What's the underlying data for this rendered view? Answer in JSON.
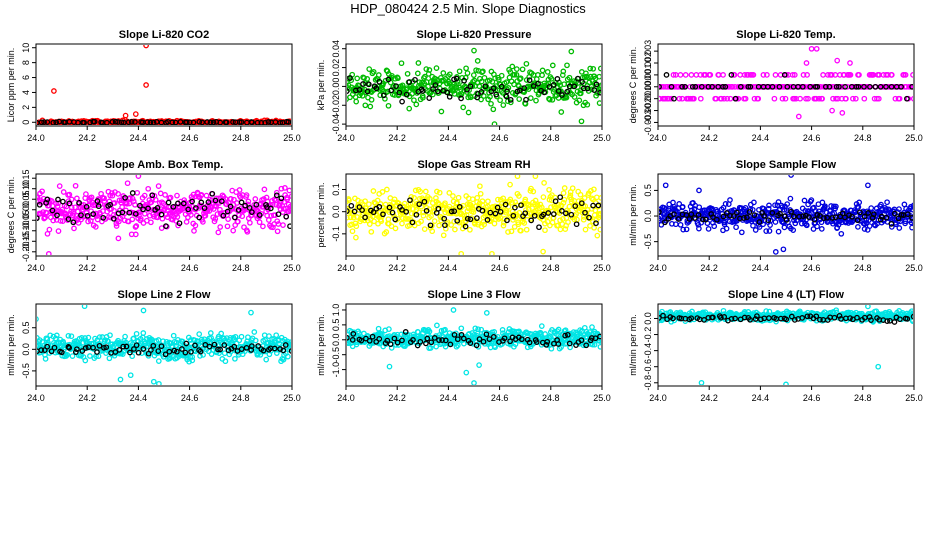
{
  "page": {
    "title": "HDP_080424  2.5 Min. Slope Diagnostics"
  },
  "chart_data": [
    {
      "type": "scatter",
      "title": "Slope Li-820 CO2",
      "xlabel": "",
      "ylabel": "Licor ppm per min.",
      "color": "#ff0000",
      "xlim": [
        24.0,
        25.0
      ],
      "ylim": [
        -0.5,
        10.5
      ],
      "x_ticks": [
        "24.0",
        "24.2",
        "24.4",
        "24.6",
        "24.8",
        "25.0"
      ],
      "x_tick_values": [
        24.0,
        24.2,
        24.4,
        24.6,
        24.8,
        25.0
      ],
      "y_ticks": [
        "0",
        "2",
        "4",
        "6",
        "8",
        "10"
      ],
      "y_tick_values": [
        0,
        2,
        4,
        6,
        8,
        10
      ],
      "series": [
        {
          "name": "all",
          "color": "#ff0000",
          "generator": {
            "center": 0.0,
            "spread": 0.25,
            "n": 330,
            "seed": 11
          },
          "outliers": [
            [
              24.07,
              4.2
            ],
            [
              24.43,
              10.3
            ],
            [
              24.43,
              5.0
            ],
            [
              24.39,
              1.1
            ],
            [
              24.38,
              -0.7
            ],
            [
              24.41,
              -0.4
            ],
            [
              24.35,
              0.9
            ]
          ]
        },
        {
          "name": "subset",
          "color": "#000000",
          "generator": {
            "center": 0.0,
            "spread": 0.1,
            "n": 70,
            "seed": 12
          }
        }
      ]
    },
    {
      "type": "scatter",
      "title": "Slope Li-820 Pressure",
      "xlabel": "",
      "ylabel": "kPa per min.",
      "color": "#00bb00",
      "xlim": [
        24.0,
        25.0
      ],
      "ylim": [
        -0.042,
        0.045
      ],
      "x_ticks": [
        "24.0",
        "24.2",
        "24.4",
        "24.6",
        "24.8",
        "25.0"
      ],
      "x_tick_values": [
        24.0,
        24.2,
        24.4,
        24.6,
        24.8,
        25.0
      ],
      "y_ticks": [
        "-0.04",
        "-0.02",
        "0.00",
        "0.02",
        "0.04"
      ],
      "y_tick_values": [
        -0.04,
        -0.02,
        0.0,
        0.02,
        0.04
      ],
      "series": [
        {
          "name": "all",
          "color": "#00bb00",
          "generator": {
            "center": 0.0,
            "spread": 0.022,
            "n": 420,
            "seed": 21
          },
          "outliers": [
            [
              24.58,
              -0.04
            ],
            [
              24.92,
              -0.037
            ],
            [
              24.5,
              0.038
            ],
            [
              24.88,
              0.037
            ]
          ]
        },
        {
          "name": "subset",
          "color": "#000000",
          "generator": {
            "center": -0.002,
            "spread": 0.012,
            "n": 70,
            "seed": 22
          }
        }
      ]
    },
    {
      "type": "scatter",
      "title": "Slope Li-820 Temp.",
      "xlabel": "",
      "ylabel": "degrees C per min.",
      "color": "#ff00ff",
      "xlim": [
        24.0,
        25.0
      ],
      "ylim": [
        -0.0033,
        0.0036
      ],
      "x_ticks": [
        "24.0",
        "24.2",
        "24.4",
        "24.6",
        "24.8",
        "25.0"
      ],
      "x_tick_values": [
        24.0,
        24.2,
        24.4,
        24.6,
        24.8,
        25.0
      ],
      "y_ticks": [
        "-0.003",
        "-0.002",
        "-0.001",
        "0.000",
        "0.001",
        "0.002",
        "0.003"
      ],
      "y_tick_values": [
        -0.003,
        -0.002,
        -0.001,
        0.0,
        0.001,
        0.002,
        0.003
      ],
      "series": [
        {
          "name": "all",
          "color": "#ff00ff",
          "generator": {
            "levels": [
              0.0,
              0.001,
              -0.001
            ],
            "weights": [
              0.55,
              0.22,
              0.23
            ],
            "n": 300,
            "seed": 31
          },
          "outliers": [
            [
              24.6,
              0.0032
            ],
            [
              24.62,
              0.0032
            ],
            [
              24.55,
              -0.0025
            ],
            [
              24.7,
              0.0022
            ],
            [
              24.72,
              -0.0022
            ],
            [
              24.75,
              0.002
            ],
            [
              24.58,
              0.002
            ],
            [
              24.68,
              -0.002
            ]
          ]
        },
        {
          "name": "subset",
          "color": "#000000",
          "generator": {
            "levels": [
              0.0,
              0.001,
              -0.001
            ],
            "weights": [
              0.8,
              0.1,
              0.1
            ],
            "n": 50,
            "seed": 32
          }
        }
      ]
    },
    {
      "type": "scatter",
      "title": "Slope Amb. Box Temp.",
      "xlabel": "",
      "ylabel": "degrees C per min.",
      "color": "#ff00ff",
      "xlim": [
        24.0,
        25.0
      ],
      "ylim": [
        -0.22,
        0.17
      ],
      "x_ticks": [
        "24.0",
        "24.2",
        "24.4",
        "24.6",
        "24.8",
        "25.0"
      ],
      "x_tick_values": [
        24.0,
        24.2,
        24.4,
        24.6,
        24.8,
        25.0
      ],
      "y_ticks": [
        "-0.20",
        "-0.15",
        "-0.10",
        "-0.05",
        "0.00",
        "0.05",
        "0.10",
        "0.15"
      ],
      "y_tick_values": [
        -0.2,
        -0.15,
        -0.1,
        -0.05,
        0.0,
        0.05,
        0.1,
        0.15
      ],
      "series": [
        {
          "name": "all",
          "color": "#ff00ff",
          "generator": {
            "center": 0.0,
            "spread": 0.1,
            "n": 480,
            "seed": 41
          },
          "outliers": [
            [
              24.05,
              -0.21
            ],
            [
              24.4,
              0.16
            ]
          ]
        },
        {
          "name": "subset",
          "color": "#000000",
          "generator": {
            "center": 0.0,
            "spread": 0.07,
            "n": 70,
            "seed": 42
          }
        }
      ]
    },
    {
      "type": "scatter",
      "title": "Slope Gas Stream RH",
      "xlabel": "",
      "ylabel": "percent per min.",
      "color": "#ffff00",
      "xlim": [
        24.0,
        25.0
      ],
      "ylim": [
        -0.2,
        0.17
      ],
      "x_ticks": [
        "24.0",
        "24.2",
        "24.4",
        "24.6",
        "24.8",
        "25.0"
      ],
      "x_tick_values": [
        24.0,
        24.2,
        24.4,
        24.6,
        24.8,
        25.0
      ],
      "y_ticks": [
        "-0.1",
        "0.0",
        "0.1"
      ],
      "y_tick_values": [
        -0.1,
        0.0,
        0.1
      ],
      "series": [
        {
          "name": "all",
          "color": "#ffff00",
          "generator": {
            "center": 0.0,
            "spread": 0.1,
            "n": 480,
            "seed": 51
          },
          "outliers": [
            [
              24.45,
              -0.19
            ],
            [
              24.57,
              -0.19
            ],
            [
              24.77,
              -0.18
            ],
            [
              24.67,
              0.16
            ],
            [
              24.74,
              0.16
            ]
          ]
        },
        {
          "name": "subset",
          "color": "#000000",
          "generator": {
            "center": 0.0,
            "spread": 0.06,
            "n": 70,
            "seed": 52
          }
        }
      ]
    },
    {
      "type": "scatter",
      "title": "Slope Sample Flow",
      "xlabel": "",
      "ylabel": "ml/min per min.",
      "color": "#0000dd",
      "xlim": [
        24.0,
        25.0
      ],
      "ylim": [
        -0.78,
        0.82
      ],
      "x_ticks": [
        "24.0",
        "24.2",
        "24.4",
        "24.6",
        "24.8",
        "25.0"
      ],
      "x_tick_values": [
        24.0,
        24.2,
        24.4,
        24.6,
        24.8,
        25.0
      ],
      "y_ticks": [
        "-0.5",
        "0.0",
        "0.5"
      ],
      "y_tick_values": [
        -0.5,
        0.0,
        0.5
      ],
      "series": [
        {
          "name": "all",
          "color": "#0000dd",
          "generator": {
            "center": 0.0,
            "spread": 0.28,
            "n": 480,
            "seed": 61
          },
          "outliers": [
            [
              24.52,
              0.8
            ],
            [
              24.49,
              -0.65
            ],
            [
              24.46,
              -0.7
            ],
            [
              24.82,
              0.6
            ],
            [
              24.16,
              0.5
            ],
            [
              24.03,
              0.6
            ]
          ]
        },
        {
          "name": "subset",
          "color": "#000000",
          "generator": {
            "center": 0.0,
            "spread": 0.12,
            "n": 70,
            "seed": 62
          }
        }
      ]
    },
    {
      "type": "scatter",
      "title": "Slope Line 2 Flow",
      "xlabel": "",
      "ylabel": "ml/min per min.",
      "color": "#00e5e5",
      "xlim": [
        24.0,
        25.0
      ],
      "ylim": [
        -0.85,
        1.05
      ],
      "x_ticks": [
        "24.0",
        "24.2",
        "24.4",
        "24.6",
        "24.8",
        "25.0"
      ],
      "x_tick_values": [
        24.0,
        24.2,
        24.4,
        24.6,
        24.8,
        25.0
      ],
      "y_ticks": [
        "-0.5",
        "0.0",
        "0.5"
      ],
      "y_tick_values": [
        -0.5,
        0.0,
        0.5
      ],
      "series": [
        {
          "name": "all",
          "color": "#00e5e5",
          "generator": {
            "center": 0.05,
            "spread": 0.3,
            "n": 480,
            "seed": 71
          },
          "outliers": [
            [
              24.19,
              1.0
            ],
            [
              24.42,
              0.9
            ],
            [
              24.46,
              -0.75
            ],
            [
              24.48,
              -0.8
            ],
            [
              24.33,
              -0.7
            ],
            [
              24.37,
              -0.6
            ],
            [
              24.84,
              0.85
            ],
            [
              24.0,
              0.7
            ]
          ]
        },
        {
          "name": "subset",
          "color": "#000000",
          "generator": {
            "center": 0.0,
            "spread": 0.15,
            "n": 70,
            "seed": 72
          }
        }
      ]
    },
    {
      "type": "scatter",
      "title": "Slope Line 3 Flow",
      "xlabel": "",
      "ylabel": "ml/min per min.",
      "color": "#00e5e5",
      "xlim": [
        24.0,
        25.0
      ],
      "ylim": [
        -1.55,
        1.2
      ],
      "x_ticks": [
        "24.0",
        "24.2",
        "24.4",
        "24.6",
        "24.8",
        "25.0"
      ],
      "x_tick_values": [
        24.0,
        24.2,
        24.4,
        24.6,
        24.8,
        25.0
      ],
      "y_ticks": [
        "-1.0",
        "-0.5",
        "0.0",
        "0.5",
        "1.0"
      ],
      "y_tick_values": [
        -1.0,
        -0.5,
        0.0,
        0.5,
        1.0
      ],
      "series": [
        {
          "name": "all",
          "color": "#00e5e5",
          "generator": {
            "center": 0.05,
            "spread": 0.35,
            "n": 480,
            "seed": 81
          },
          "outliers": [
            [
              24.5,
              -1.45
            ],
            [
              24.47,
              -1.1
            ],
            [
              24.52,
              -0.85
            ],
            [
              24.17,
              -0.9
            ],
            [
              24.42,
              1.0
            ],
            [
              24.55,
              0.9
            ]
          ]
        },
        {
          "name": "subset",
          "color": "#000000",
          "generator": {
            "center": 0.0,
            "spread": 0.2,
            "n": 70,
            "seed": 82
          }
        }
      ]
    },
    {
      "type": "scatter",
      "title": "Slope Line 4 (LT) Flow",
      "xlabel": "",
      "ylabel": "ml/min per min.",
      "color": "#00e5e5",
      "xlim": [
        24.0,
        25.0
      ],
      "ylim": [
        -0.84,
        0.18
      ],
      "x_ticks": [
        "24.0",
        "24.2",
        "24.4",
        "24.6",
        "24.8",
        "25.0"
      ],
      "x_tick_values": [
        24.0,
        24.2,
        24.4,
        24.6,
        24.8,
        25.0
      ],
      "y_ticks": [
        "-0.8",
        "-0.6",
        "-0.4",
        "-0.2",
        "0.0"
      ],
      "y_tick_values": [
        -0.8,
        -0.6,
        -0.4,
        -0.2,
        0.0
      ],
      "series": [
        {
          "name": "all",
          "color": "#00e5e5",
          "generator": {
            "center": 0.03,
            "spread": 0.06,
            "n": 480,
            "seed": 91
          },
          "outliers": [
            [
              24.17,
              -0.8
            ],
            [
              24.5,
              -0.82
            ],
            [
              24.86,
              -0.6
            ],
            [
              24.82,
              0.15
            ]
          ]
        },
        {
          "name": "subset",
          "color": "#000000",
          "generator": {
            "center": 0.0,
            "spread": 0.04,
            "n": 70,
            "seed": 92
          }
        }
      ]
    }
  ]
}
